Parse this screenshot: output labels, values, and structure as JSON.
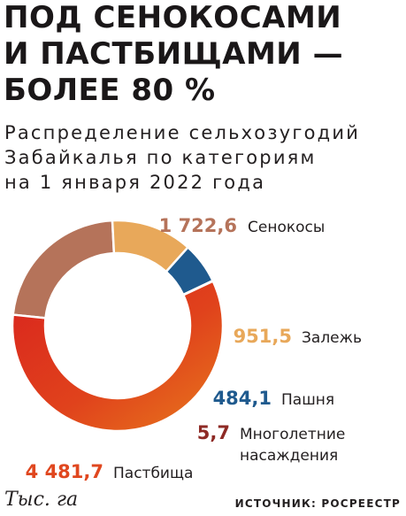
{
  "title_lines": [
    "ПОД СЕНОКОСАМИ",
    "И ПАСТБИЩАМИ —",
    "БОЛЕЕ 80 %"
  ],
  "subtitle_lines": [
    "Распределение сельхозугодий",
    "Забайкалья по категориям",
    "на 1 января 2022 года"
  ],
  "unit": "Тыс. га",
  "source": "ИСТОЧНИК: РОСРЕЕСТР",
  "chart_data": {
    "type": "pie",
    "donut": true,
    "title": "ПОД СЕНОКОСАМИ И ПАСТБИЩАМИ — БОЛЕЕ 80 %",
    "unit": "Тыс. га",
    "slices": [
      {
        "label": "Сенокосы",
        "value": 1722.6,
        "value_label": "1 722,6",
        "color": "#b5735a"
      },
      {
        "label": "Залежь",
        "value": 951.5,
        "value_label": "951,5",
        "color": "#e8a85a"
      },
      {
        "label": "Пашня",
        "value": 484.1,
        "value_label": "484,1",
        "color": "#1f5a8e"
      },
      {
        "label": "Многолетние насаждения",
        "label_lines": [
          "Многолетние",
          "насаждения"
        ],
        "value": 5.7,
        "value_label": "5,7",
        "color": "#8e2a25"
      },
      {
        "label": "Пастбища",
        "value": 4481.7,
        "value_label": "4 481,7",
        "color": "#de3a1e"
      }
    ]
  }
}
